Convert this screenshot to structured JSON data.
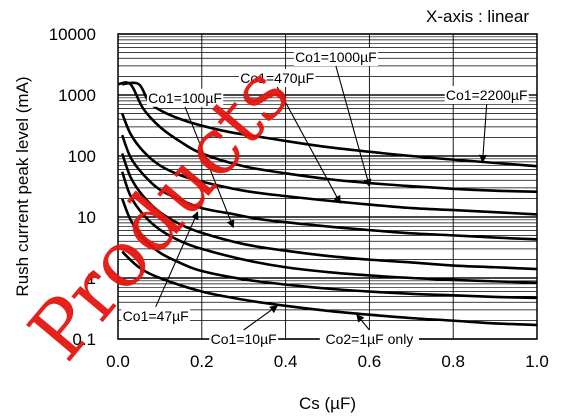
{
  "chart_data": {
    "type": "line",
    "title": "",
    "xlabel": "Cs (µF)",
    "ylabel": "Rush current peak level (mA)",
    "x_scale": "linear",
    "y_scale": "log",
    "xlim": [
      0,
      1.0
    ],
    "ylim": [
      0.1,
      10000
    ],
    "x_ticks": [
      "0.0",
      "0.2",
      "0.4",
      "0.6",
      "0.8",
      "1.0"
    ],
    "y_ticks": [
      "0.1",
      "1",
      "10",
      "100",
      "1000",
      "10000"
    ],
    "note": "X-axis : linear",
    "watermark": "Products",
    "grid": true,
    "line_color": "#000000",
    "watermark_color": "#e3160f",
    "series": [
      {
        "name": "Co1=2200µF",
        "x": [
          0.01,
          0.05,
          0.08,
          0.15,
          0.25,
          0.35,
          0.5,
          0.7,
          0.85,
          1.0
        ],
        "y": [
          1500,
          1500,
          700,
          400,
          260,
          200,
          140,
          100,
          82,
          68
        ]
      },
      {
        "name": "Co1=1000µF",
        "x": [
          0.0,
          0.03,
          0.06,
          0.1,
          0.15,
          0.2,
          0.3,
          0.4,
          0.5,
          0.6,
          0.7,
          0.8,
          0.9,
          1.0
        ],
        "y": [
          1500,
          1500,
          600,
          300,
          170,
          110,
          68,
          52,
          42,
          36,
          32,
          29,
          27,
          26
        ]
      },
      {
        "name": "Co1=470µF",
        "x": [
          0.01,
          0.03,
          0.06,
          0.1,
          0.15,
          0.2,
          0.3,
          0.4,
          0.52,
          0.6,
          0.7,
          0.8,
          0.9,
          1.0
        ],
        "y": [
          500,
          230,
          120,
          70,
          48,
          38,
          27,
          22,
          18,
          16,
          14,
          13,
          12,
          11
        ]
      },
      {
        "name": "Co1=100µF",
        "x": [
          0.01,
          0.03,
          0.06,
          0.1,
          0.15,
          0.2,
          0.28,
          0.35,
          0.5,
          0.6,
          0.7,
          0.8,
          0.9,
          1.0
        ],
        "y": [
          220,
          95,
          50,
          28,
          19,
          14,
          11,
          9,
          7,
          6.1,
          5.4,
          5.0,
          4.6,
          4.3
        ]
      },
      {
        "name": "Co1=47µF",
        "x": [
          0.01,
          0.03,
          0.06,
          0.1,
          0.15,
          0.2,
          0.3,
          0.4,
          0.5,
          0.6,
          0.7,
          0.8,
          0.9,
          1.0
        ],
        "y": [
          110,
          45,
          22,
          12,
          7.5,
          5.5,
          3.6,
          2.8,
          2.3,
          2.0,
          1.8,
          1.6,
          1.5,
          1.4
        ]
      },
      {
        "name": "",
        "x": [
          0.01,
          0.03,
          0.06,
          0.1,
          0.15,
          0.2,
          0.3,
          0.4,
          0.5,
          0.6,
          0.7,
          0.8,
          0.9,
          1.0
        ],
        "y": [
          55,
          22,
          11,
          6.2,
          4.0,
          3.0,
          2.0,
          1.5,
          1.25,
          1.1,
          1.0,
          0.93,
          0.88,
          0.84
        ]
      },
      {
        "name": "Co1=10µF",
        "x": [
          0.01,
          0.03,
          0.06,
          0.1,
          0.15,
          0.2,
          0.3,
          0.4,
          0.5,
          0.6,
          0.7,
          0.8,
          0.9,
          1.0
        ],
        "y": [
          20,
          9,
          4.5,
          2.6,
          1.75,
          1.3,
          0.95,
          0.78,
          0.67,
          0.6,
          0.55,
          0.52,
          0.49,
          0.47
        ]
      },
      {
        "name": "Co2=1µF only",
        "x": [
          0.01,
          0.05,
          0.1,
          0.2,
          0.3,
          0.4,
          0.5,
          0.6,
          0.7,
          0.8,
          0.9,
          1.0
        ],
        "y": [
          2.7,
          1.5,
          1.0,
          0.6,
          0.44,
          0.35,
          0.29,
          0.25,
          0.22,
          0.2,
          0.18,
          0.17
        ]
      }
    ],
    "annotations": [
      {
        "text": "Co1=1000µF",
        "box_x": 0.52,
        "box_y": 4200,
        "arrow_to_x": 0.6,
        "arrow_to_y": 32
      },
      {
        "text": "Co1=470µF",
        "box_x": 0.38,
        "box_y": 1900,
        "arrow_to_x": 0.53,
        "arrow_to_y": 17
      },
      {
        "text": "Co1=2200µF",
        "box_x": 0.88,
        "box_y": 1000,
        "arrow_to_x": 0.87,
        "arrow_to_y": 80
      },
      {
        "text": "Co1=100µF",
        "box_x": 0.16,
        "box_y": 900,
        "arrow_to_x": 0.275,
        "arrow_to_y": 6.8
      },
      {
        "text": "Co1=47µF",
        "box_x": 0.09,
        "box_y": 0.24,
        "arrow_to_x": 0.19,
        "arrow_to_y": 12
      },
      {
        "text": "Co1=10µF",
        "box_x": 0.3,
        "box_y": 0.1,
        "arrow_to_x": 0.38,
        "arrow_to_y": 0.35
      },
      {
        "text": "Co2=1µF only",
        "box_x": 0.6,
        "box_y": 0.1,
        "arrow_to_x": 0.57,
        "arrow_to_y": 0.25
      }
    ]
  }
}
